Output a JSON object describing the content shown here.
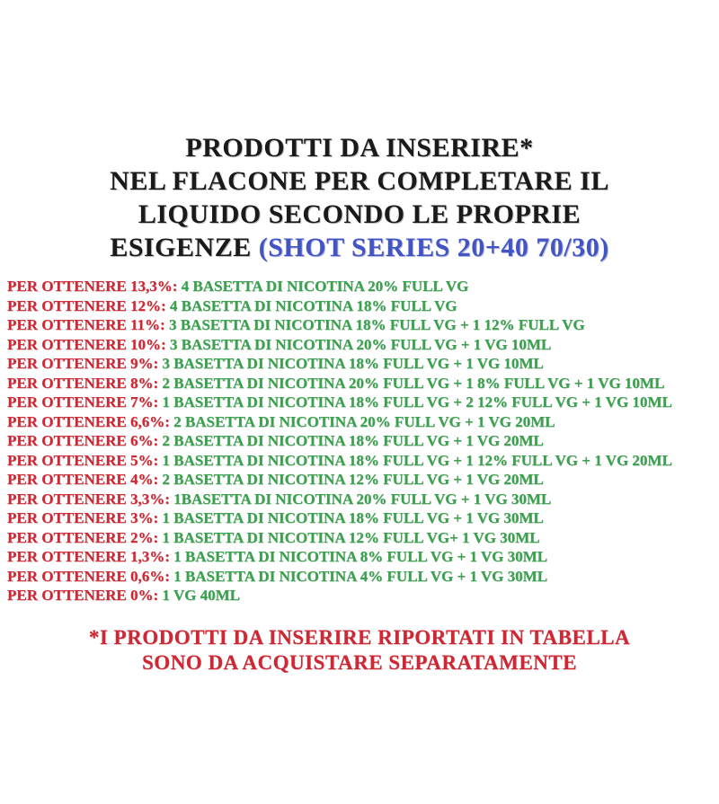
{
  "title": {
    "line1": "PRODOTTI DA INSERIRE*",
    "line2": "NEL FLACONE PER COMPLETARE IL",
    "line3": "LIQUIDO SECONDO LE PROPRIE",
    "line4_black": "ESIGENZE ",
    "line4_blue": "(SHOT SERIES 20+40 70/30)"
  },
  "recipes": [
    {
      "target": "PER OTTENERE 13,3%:",
      "products": "4 BASETTA DI NICOTINA 20% FULL VG"
    },
    {
      "target": "PER OTTENERE 12%:",
      "products": "4 BASETTA DI NICOTINA 18% FULL VG"
    },
    {
      "target": "PER OTTENERE 11%:",
      "products": "3 BASETTA DI NICOTINA 18% FULL VG + 1 12% FULL VG"
    },
    {
      "target": "PER OTTENERE 10%:",
      "products": "3 BASETTA DI NICOTINA 20% FULL VG + 1 VG 10ML"
    },
    {
      "target": "PER OTTENERE 9%:",
      "products": "3 BASETTA DI NICOTINA 18% FULL VG + 1 VG 10ML"
    },
    {
      "target": "PER OTTENERE 8%:",
      "products": "2 BASETTA DI NICOTINA 20% FULL VG + 1 8% FULL VG + 1 VG 10ML"
    },
    {
      "target": "PER OTTENERE 7%:",
      "products": "1 BASETTA DI NICOTINA 18% FULL VG + 2 12% FULL VG + 1 VG 10ML"
    },
    {
      "target": "PER OTTENERE 6,6%:",
      "products": "2 BASETTA DI NICOTINA 20% FULL VG + 1 VG 20ML"
    },
    {
      "target": "PER OTTENERE 6%:",
      "products": "2 BASETTA DI NICOTINA 18% FULL VG + 1 VG 20ML"
    },
    {
      "target": "PER OTTENERE 5%:",
      "products": "1 BASETTA DI NICOTINA 18% FULL VG + 1 12% FULL VG + 1 VG 20ML"
    },
    {
      "target": "PER OTTENERE 4%:",
      "products": "2 BASETTA DI NICOTINA 12% FULL VG + 1 VG 20ML"
    },
    {
      "target": "PER OTTENERE 3,3%:",
      "products": "1BASETTA DI NICOTINA 20% FULL VG + 1 VG 30ML"
    },
    {
      "target": "PER OTTENERE 3%:",
      "products": "1 BASETTA DI NICOTINA 18% FULL VG + 1 VG 30ML"
    },
    {
      "target": "PER OTTENERE 2%:",
      "products": "1 BASETTA DI NICOTINA 12% FULL VG+ 1 VG 30ML"
    },
    {
      "target": "PER OTTENERE 1,3%:",
      "products": "1 BASETTA DI NICOTINA 8% FULL VG + 1 VG 30ML"
    },
    {
      "target": "PER OTTENERE 0,6%:",
      "products": "1 BASETTA DI NICOTINA 4% FULL VG + 1 VG 30ML"
    },
    {
      "target": "PER OTTENERE 0%:",
      "products": "1 VG 40ML"
    }
  ],
  "footnote": {
    "line1": "*I PRODOTTI DA INSERIRE RIPORTATI IN TABELLA",
    "line2": "SONO DA ACQUISTARE SEPARATAMENTE"
  },
  "colors": {
    "label_red": "#cf2733",
    "value_green": "#3aa24d",
    "accent_blue": "#4355c4",
    "title_black": "#1a1a1a",
    "background": "#ffffff"
  }
}
